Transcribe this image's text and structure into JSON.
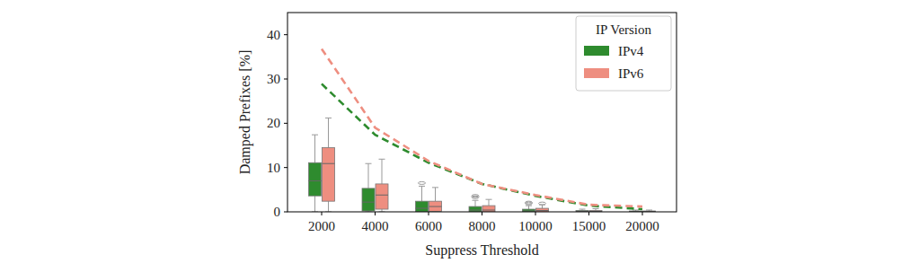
{
  "chart_data": {
    "type": "box",
    "x_label": "Suppress Threshold",
    "y_label": "Damped Prefixes [%]",
    "legend_title": "IP Version",
    "legend": "upper right",
    "categories": [
      "2000",
      "4000",
      "6000",
      "8000",
      "10000",
      "15000",
      "20000"
    ],
    "ylim": [
      0,
      45
    ],
    "yticks": [
      0,
      10,
      20,
      30,
      40
    ],
    "grid": false,
    "series": [
      {
        "name": "IPv4",
        "color": "#2e8b2e",
        "line_style": "dashed",
        "whisker_low": [
          0,
          0,
          0,
          0,
          0,
          0,
          0
        ],
        "q1": [
          3.6,
          0.2,
          0,
          0,
          0,
          0,
          0
        ],
        "median": [
          7.0,
          2.2,
          0.8,
          0.4,
          0.2,
          0.1,
          0.05
        ],
        "q3": [
          11.1,
          5.3,
          2.4,
          1.2,
          0.6,
          0.3,
          0.2
        ],
        "whisker_high": [
          17.4,
          10.9,
          5.8,
          2.6,
          1.4,
          0.6,
          0.4
        ],
        "outliers": [
          [],
          [],
          [
            6.5
          ],
          [
            3.3,
            3.6
          ],
          [
            1.9,
            2.1
          ],
          [],
          []
        ],
        "line_values": [
          28.9,
          17.4,
          11.1,
          6.3,
          3.6,
          1.4,
          0.6
        ]
      },
      {
        "name": "IPv6",
        "color": "#ee8e80",
        "line_style": "dashed",
        "whisker_low": [
          0,
          0,
          0,
          0,
          0,
          0,
          0
        ],
        "q1": [
          2.4,
          0.6,
          0.1,
          0,
          0,
          0,
          0
        ],
        "median": [
          10.9,
          3.8,
          1.2,
          0.4,
          0.3,
          0.1,
          0.05
        ],
        "q3": [
          14.5,
          6.3,
          2.4,
          1.4,
          0.8,
          0.3,
          0.2
        ],
        "whisker_high": [
          21.2,
          11.9,
          5.5,
          2.8,
          1.6,
          0.7,
          0.4
        ],
        "outliers": [
          [],
          [],
          [],
          [],
          [
            1.9
          ],
          [],
          []
        ],
        "line_values": [
          36.8,
          19.0,
          11.5,
          6.3,
          3.8,
          1.6,
          1.2
        ]
      }
    ]
  }
}
